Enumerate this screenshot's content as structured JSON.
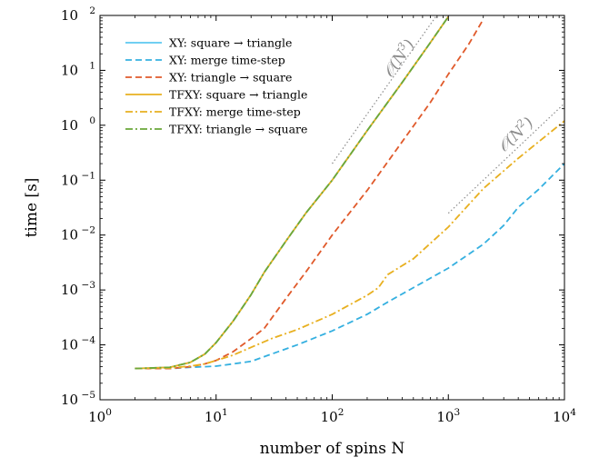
{
  "chart_data": {
    "type": "line",
    "xlabel": "number of spins N",
    "ylabel": "time [s]",
    "xscale": "log",
    "yscale": "log",
    "xlim": [
      1,
      10000
    ],
    "ylim": [
      1e-05,
      100
    ],
    "x_ticks": [
      {
        "value": 1,
        "mantissa": "10",
        "exp": "0"
      },
      {
        "value": 10,
        "mantissa": "10",
        "exp": "1"
      },
      {
        "value": 100,
        "mantissa": "10",
        "exp": "2"
      },
      {
        "value": 1000,
        "mantissa": "10",
        "exp": "3"
      },
      {
        "value": 10000,
        "mantissa": "10",
        "exp": "4"
      }
    ],
    "y_ticks": [
      {
        "value": 1e-05,
        "mantissa": "10",
        "exp": "−5"
      },
      {
        "value": 0.0001,
        "mantissa": "10",
        "exp": "−4"
      },
      {
        "value": 0.001,
        "mantissa": "10",
        "exp": "−3"
      },
      {
        "value": 0.01,
        "mantissa": "10",
        "exp": "−2"
      },
      {
        "value": 0.1,
        "mantissa": "10",
        "exp": "−1"
      },
      {
        "value": 1,
        "mantissa": "10",
        "exp": "0"
      },
      {
        "value": 10,
        "mantissa": "10",
        "exp": "1"
      },
      {
        "value": 100,
        "mantissa": "10",
        "exp": "2"
      }
    ],
    "grid": false,
    "legend_position": "top-left",
    "series": [
      {
        "name": "XY: square → triangle",
        "color": "#5bc8f0",
        "style": "solid",
        "x": [
          2,
          4,
          6,
          8,
          10,
          14,
          20,
          26,
          40,
          60,
          100,
          200,
          400,
          700,
          1000
        ],
        "y": [
          3.7e-05,
          3.9e-05,
          4.8e-05,
          6.8e-05,
          0.00011,
          0.00027,
          0.00082,
          0.0021,
          0.0078,
          0.026,
          0.1,
          0.8,
          6,
          32,
          95
        ]
      },
      {
        "name": "XY: merge time-step",
        "color": "#35b0e0",
        "style": "dashed",
        "x": [
          2,
          4,
          6,
          8,
          10,
          14,
          20,
          30,
          50,
          100,
          200,
          300,
          500,
          1000,
          2000,
          3000,
          4000,
          6000,
          10000
        ],
        "y": [
          3.7e-05,
          3.7e-05,
          3.9e-05,
          4e-05,
          4.1e-05,
          4.5e-05,
          5e-05,
          6.8e-05,
          0.0001,
          0.00018,
          0.00036,
          0.0006,
          0.0011,
          0.0025,
          0.0068,
          0.015,
          0.032,
          0.068,
          0.2
        ]
      },
      {
        "name": "XY: triangle → square",
        "color": "#e05a2b",
        "style": "dashed",
        "x": [
          2,
          4,
          6,
          8,
          10,
          14,
          20,
          26,
          40,
          60,
          100,
          150,
          200,
          400,
          700,
          1000,
          1500,
          2000
        ],
        "y": [
          3.7e-05,
          3.7e-05,
          4e-05,
          4.5e-05,
          5.2e-05,
          7.5e-05,
          0.00013,
          0.0002,
          0.0007,
          0.0022,
          0.01,
          0.03,
          0.065,
          0.5,
          2.6,
          8.5,
          30,
          85
        ]
      },
      {
        "name": "TFXY: square → triangle",
        "color": "#e8b020",
        "style": "solid",
        "x": [
          2,
          4,
          6,
          8,
          10,
          14,
          20,
          26,
          40,
          60,
          100,
          200,
          400,
          700,
          1000
        ],
        "y": [
          3.7e-05,
          3.9e-05,
          4.8e-05,
          6.8e-05,
          0.00011,
          0.00027,
          0.00082,
          0.0021,
          0.0078,
          0.026,
          0.1,
          0.8,
          6,
          32,
          95
        ]
      },
      {
        "name": "TFXY: merge time-step",
        "color": "#e8b020",
        "style": "dashdot",
        "x": [
          2,
          4,
          6,
          8,
          10,
          14,
          20,
          30,
          50,
          100,
          200,
          250,
          300,
          500,
          1000,
          2000,
          4000,
          10000
        ],
        "y": [
          3.7e-05,
          3.8e-05,
          4.1e-05,
          4.5e-05,
          5.2e-05,
          6.5e-05,
          9e-05,
          0.00013,
          0.00019,
          0.00036,
          0.0008,
          0.0011,
          0.0019,
          0.0037,
          0.014,
          0.07,
          0.25,
          1.2
        ]
      },
      {
        "name": "TFXY: triangle → square",
        "color": "#6aa83a",
        "style": "dashdot",
        "x": [
          2,
          4,
          6,
          8,
          10,
          14,
          20,
          26,
          40,
          60,
          100,
          200,
          400,
          700,
          1000
        ],
        "y": [
          3.7e-05,
          3.9e-05,
          4.8e-05,
          6.8e-05,
          0.00011,
          0.00027,
          0.00082,
          0.0021,
          0.0078,
          0.026,
          0.1,
          0.8,
          6,
          32,
          95
        ]
      }
    ],
    "reference_lines": [
      {
        "label_mantissa": "𝒪(N",
        "label_exp": "3",
        "label_close": ")",
        "x": [
          100,
          1000
        ],
        "y": [
          0.2,
          200
        ],
        "color": "#8c8c8c"
      },
      {
        "label_mantissa": "𝒪(N",
        "label_exp": "2",
        "label_close": ")",
        "x": [
          1000,
          10000
        ],
        "y": [
          0.025,
          2.5
        ],
        "color": "#8c8c8c"
      }
    ]
  }
}
